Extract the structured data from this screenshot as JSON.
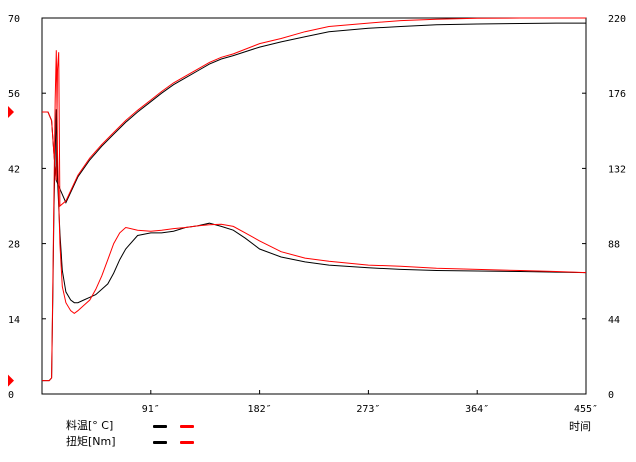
{
  "chart_data": {
    "type": "line",
    "xlabel": "时间",
    "x_range": [
      0,
      455
    ],
    "x_ticks": [
      "91″",
      "182″",
      "273″",
      "364″",
      "455″"
    ],
    "x_tick_values": [
      91,
      182,
      273,
      364,
      455
    ],
    "left_axis": {
      "range": [
        0,
        70
      ],
      "ticks": [
        "0",
        "14",
        "28",
        "42",
        "56",
        "70"
      ],
      "tick_values": [
        0,
        14,
        28,
        42,
        56,
        70
      ]
    },
    "right_axis": {
      "range": [
        0,
        220
      ],
      "ticks": [
        "0",
        "44",
        "88",
        "132",
        "176",
        "220"
      ],
      "tick_values": [
        0,
        44,
        88,
        132,
        176,
        220
      ]
    },
    "grid": false,
    "legend": [
      {
        "label": "料温[° C]",
        "colors": [
          "#000000",
          "#ff0000"
        ]
      },
      {
        "label": "扭矩[Nm]",
        "colors": [
          "#000000",
          "#ff0000"
        ]
      }
    ],
    "markers": [
      {
        "axis": "left",
        "value": 52.5,
        "color": "#ff0000"
      },
      {
        "axis": "left",
        "value": 2.5,
        "color": "#ff0000"
      }
    ],
    "series": [
      {
        "axis": "right",
        "color": "#000000",
        "x": [
          0,
          5,
          8,
          10,
          12,
          15,
          20,
          30,
          40,
          50,
          60,
          70,
          80,
          91,
          100,
          110,
          120,
          130,
          140,
          150,
          160,
          182,
          200,
          220,
          240,
          273,
          300,
          330,
          364,
          400,
          430,
          455
        ],
        "y": [
          165,
          165,
          160,
          140,
          125,
          120,
          112,
          127,
          137,
          145,
          152,
          159,
          165,
          171,
          176,
          181,
          185,
          189,
          193,
          196,
          198,
          203,
          206,
          209,
          212,
          214,
          215,
          216,
          216.5,
          216.8,
          217,
          217
        ]
      },
      {
        "axis": "right",
        "color": "#ff0000",
        "x": [
          0,
          5,
          8,
          10,
          12,
          13,
          14,
          15,
          20,
          30,
          40,
          50,
          60,
          70,
          80,
          91,
          100,
          110,
          120,
          130,
          140,
          150,
          160,
          182,
          200,
          220,
          240,
          273,
          300,
          330,
          364,
          400,
          430,
          455
        ],
        "y": [
          165,
          165,
          160,
          140,
          125,
          190,
          200,
          110,
          113,
          128,
          138,
          146,
          153,
          160,
          166,
          172,
          177,
          182,
          186,
          190,
          194,
          197,
          199,
          205,
          208,
          212,
          215,
          217,
          218.5,
          219.3,
          219.8,
          220,
          220,
          220
        ]
      },
      {
        "axis": "left",
        "color": "#000000",
        "x": [
          0,
          6,
          8,
          9,
          10,
          11,
          12,
          13,
          15,
          17,
          20,
          24,
          27,
          30,
          35,
          40,
          45,
          50,
          55,
          60,
          65,
          70,
          80,
          91,
          100,
          110,
          120,
          130,
          140,
          150,
          160,
          170,
          182,
          200,
          220,
          240,
          273,
          300,
          330,
          364,
          400,
          430,
          455
        ],
        "y": [
          2.5,
          2.5,
          3,
          18,
          35,
          45,
          53,
          40,
          30,
          23,
          19,
          17.5,
          17,
          17,
          17.5,
          18,
          18.5,
          19.5,
          20.5,
          22.5,
          25,
          27,
          29.5,
          30,
          30,
          30.3,
          31,
          31.3,
          31.8,
          31.2,
          30.5,
          29,
          27,
          25.5,
          24.6,
          24,
          23.5,
          23.2,
          23,
          22.9,
          22.8,
          22.7,
          22.6
        ]
      },
      {
        "axis": "left",
        "color": "#ff0000",
        "x": [
          0,
          6,
          8,
          9,
          10,
          11,
          12,
          13,
          15,
          17,
          20,
          24,
          27,
          30,
          35,
          40,
          45,
          50,
          55,
          60,
          65,
          70,
          80,
          91,
          100,
          110,
          120,
          130,
          140,
          150,
          160,
          170,
          182,
          200,
          220,
          240,
          273,
          300,
          330,
          364,
          400,
          430,
          455
        ],
        "y": [
          2.5,
          2.5,
          3,
          20,
          38,
          55,
          64,
          45,
          28,
          20,
          17,
          15.5,
          15,
          15.5,
          16.5,
          17.5,
          19.5,
          22,
          25,
          28,
          30,
          31,
          30.5,
          30.3,
          30.5,
          30.8,
          31,
          31.3,
          31.5,
          31.6,
          31.2,
          30,
          28.5,
          26.5,
          25.3,
          24.7,
          24,
          23.8,
          23.4,
          23.2,
          23,
          22.8,
          22.6
        ]
      }
    ]
  }
}
